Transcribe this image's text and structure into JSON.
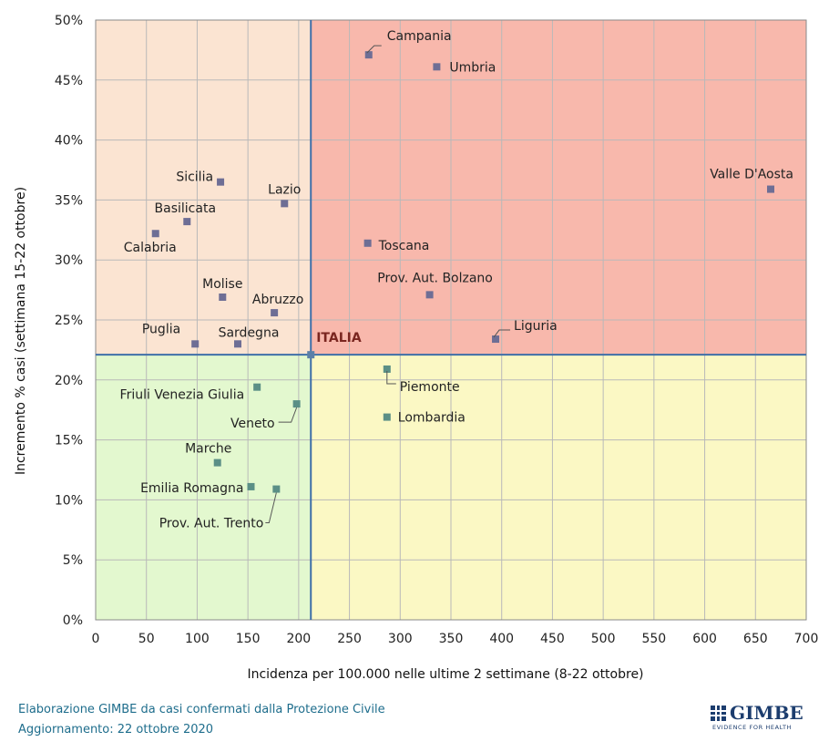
{
  "chart_data": {
    "type": "scatter",
    "xlabel": "Incidenza per 100.000 nelle ultime 2 settimane (8-22 ottobre)",
    "ylabel": "Incremento %  casi (settimana 15-22 ottobre)",
    "xlim": [
      0,
      700
    ],
    "ylim": [
      0,
      50
    ],
    "x_ticks": [
      "0",
      "50",
      "100",
      "150",
      "200",
      "250",
      "300",
      "350",
      "400",
      "450",
      "500",
      "550",
      "600",
      "650",
      "700"
    ],
    "y_ticks": [
      "0%",
      "5%",
      "10%",
      "15%",
      "20%",
      "25%",
      "30%",
      "35%",
      "40%",
      "45%",
      "50%"
    ],
    "grid": true,
    "reference": {
      "label": "ITALIA",
      "x": 212,
      "y": 22.1
    },
    "quadrant_colors": {
      "top_left": "#fbe4d2",
      "top_right": "#f8b8ac",
      "bottom_left": "#e3f8cf",
      "bottom_right": "#fbf8c4"
    },
    "marker_colors": {
      "above": "#6e6e95",
      "below": "#5b8f86"
    },
    "reference_line_color": "#3f6fa8",
    "points": [
      {
        "name": "Campania",
        "x": 269,
        "y": 47.1
      },
      {
        "name": "Umbria",
        "x": 336,
        "y": 46.1
      },
      {
        "name": "Valle D'Aosta",
        "x": 665,
        "y": 35.9
      },
      {
        "name": "Sicilia",
        "x": 123,
        "y": 36.5
      },
      {
        "name": "Lazio",
        "x": 186,
        "y": 34.7
      },
      {
        "name": "Basilicata",
        "x": 90,
        "y": 33.2
      },
      {
        "name": "Calabria",
        "x": 59,
        "y": 32.2
      },
      {
        "name": "Toscana",
        "x": 268,
        "y": 31.4
      },
      {
        "name": "Prov. Aut. Bolzano",
        "x": 329,
        "y": 27.1
      },
      {
        "name": "Molise",
        "x": 125,
        "y": 26.9
      },
      {
        "name": "Abruzzo",
        "x": 176,
        "y": 25.6
      },
      {
        "name": "Liguria",
        "x": 394,
        "y": 23.4
      },
      {
        "name": "Puglia",
        "x": 98,
        "y": 23.0
      },
      {
        "name": "Sardegna",
        "x": 140,
        "y": 23.0
      },
      {
        "name": "Piemonte",
        "x": 287,
        "y": 20.9
      },
      {
        "name": "Friuli Venezia Giulia",
        "x": 159,
        "y": 19.4
      },
      {
        "name": "Veneto",
        "x": 198,
        "y": 18.0
      },
      {
        "name": "Lombardia",
        "x": 287,
        "y": 16.9
      },
      {
        "name": "Marche",
        "x": 120,
        "y": 13.1
      },
      {
        "name": "Emilia Romagna",
        "x": 153,
        "y": 11.1
      },
      {
        "name": "Prov. Aut. Trento",
        "x": 178,
        "y": 10.9
      }
    ]
  },
  "footer": {
    "line1": "Elaborazione GIMBE da casi confermati dalla Protezione Civile",
    "line2": "Aggiornamento: 22 ottobre 2020"
  },
  "logo": {
    "name": "GIMBE",
    "tagline": "EVIDENCE FOR HEALTH"
  }
}
